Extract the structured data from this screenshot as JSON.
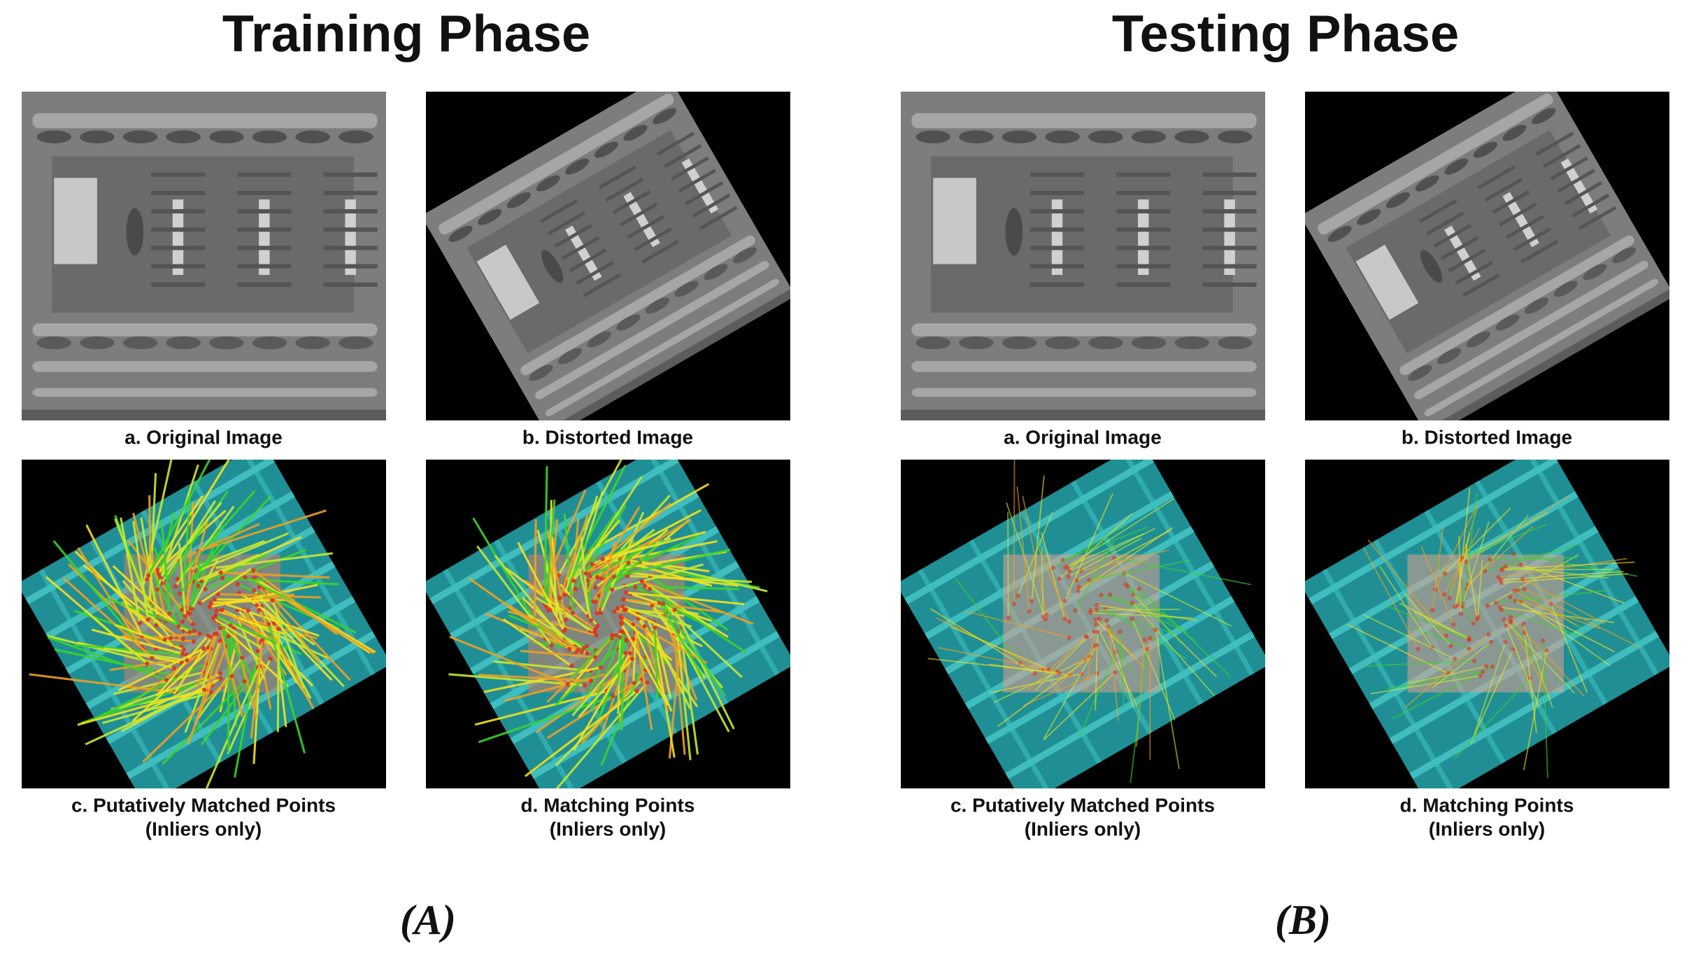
{
  "panels": [
    {
      "title": "Training Phase",
      "label": "(A)",
      "images": [
        {
          "caption": [
            "a. Original Image"
          ]
        },
        {
          "caption": [
            "b. Distorted Image"
          ]
        },
        {
          "caption": [
            "c. Putatively Matched Points",
            "(Inliers only)"
          ]
        },
        {
          "caption": [
            "d. Matching Points",
            "(Inliers only)"
          ]
        }
      ]
    },
    {
      "title": "Testing Phase",
      "label": "(B)",
      "images": [
        {
          "caption": [
            "a. Original Image"
          ]
        },
        {
          "caption": [
            "b. Distorted Image"
          ]
        },
        {
          "caption": [
            "c. Putatively Matched Points",
            "(Inliers only)"
          ]
        },
        {
          "caption": [
            "d. Matching Points",
            "(Inliers only)"
          ]
        }
      ]
    }
  ]
}
